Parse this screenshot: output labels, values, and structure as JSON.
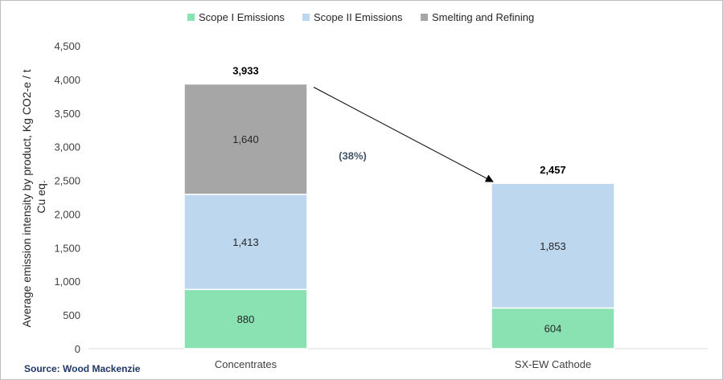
{
  "chart_data": {
    "type": "bar",
    "stacked": true,
    "categories": [
      "Concentrates",
      "SX-EW Cathode"
    ],
    "series": [
      {
        "name": "Scope I Emissions",
        "values": [
          880,
          604
        ],
        "color": "#8ae2b2"
      },
      {
        "name": "Scope II Emissions",
        "values": [
          1413,
          1853
        ],
        "color": "#bdd7ee"
      },
      {
        "name": "Smelting and Refining",
        "values": [
          1640,
          0
        ],
        "color": "#a6a6a6"
      }
    ],
    "segment_labels": [
      [
        "880",
        "604"
      ],
      [
        "1,413",
        "1,853"
      ],
      [
        "1,640",
        ""
      ]
    ],
    "totals": [
      3933,
      2457
    ],
    "total_labels": [
      "3,933",
      "2,457"
    ],
    "ylabel_lines": [
      "Average emission intensity by product, Kg CO2-e / t",
      "Cu eq."
    ],
    "ylim": [
      0,
      4500
    ],
    "yticks": [
      0,
      500,
      1000,
      1500,
      2000,
      2500,
      3000,
      3500,
      4000,
      4500
    ],
    "ytick_labels": [
      "0",
      "500",
      "1,000",
      "1,500",
      "2,000",
      "2,500",
      "3,000",
      "3,500",
      "4,000",
      "4,500"
    ],
    "grid": false,
    "legend_position": "top",
    "annotation": {
      "text": "(38%)",
      "from_category": 0,
      "to_category": 1
    },
    "source": "Source: Wood Mackenzie"
  }
}
